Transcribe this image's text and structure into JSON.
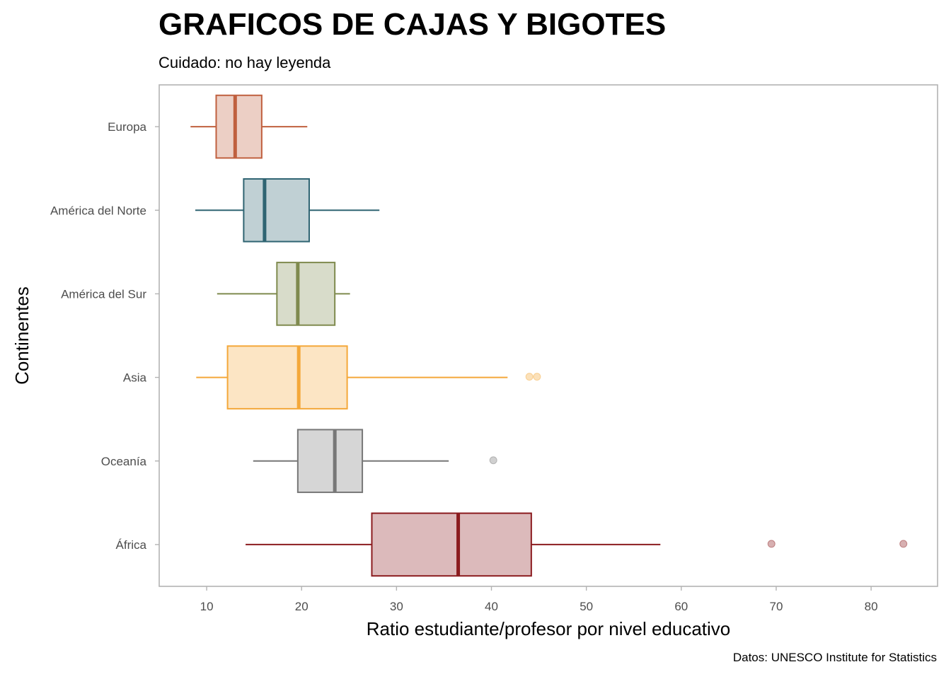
{
  "header": {
    "title": "GRAFICOS DE CAJAS Y BIGOTES",
    "subtitle": "Cuidado: no hay leyenda"
  },
  "caption": "Datos: UNESCO Institute for Statistics",
  "chart_data": {
    "type": "boxplot",
    "orientation": "horizontal",
    "title": "GRAFICOS DE CAJAS Y BIGOTES",
    "subtitle": "Cuidado: no hay leyenda",
    "xlabel": "Ratio estudiante/profesor por nivel educativo",
    "ylabel": "Continentes",
    "xlim": [
      5,
      87
    ],
    "x_ticks": [
      10,
      20,
      30,
      40,
      50,
      60,
      70,
      80
    ],
    "legend": "none",
    "grid": false,
    "categories": [
      "Europa",
      "América del Norte",
      "América del Sur",
      "Asia",
      "Oceanía",
      "África"
    ],
    "series": [
      {
        "category": "Europa",
        "color": "#c0603f",
        "whisker_low": 8.3,
        "q1": 11.0,
        "median": 13.0,
        "q3": 15.8,
        "whisker_high": 20.6,
        "outliers": []
      },
      {
        "category": "América del Norte",
        "color": "#2f6472",
        "whisker_low": 8.8,
        "q1": 13.9,
        "median": 16.1,
        "q3": 20.8,
        "whisker_high": 28.2,
        "outliers": []
      },
      {
        "category": "América del Sur",
        "color": "#7f8a4e",
        "whisker_low": 11.1,
        "q1": 17.4,
        "median": 19.6,
        "q3": 23.5,
        "whisker_high": 25.1,
        "outliers": []
      },
      {
        "category": "Asia",
        "color": "#f4a83a",
        "whisker_low": 8.9,
        "q1": 12.2,
        "median": 19.7,
        "q3": 24.8,
        "whisker_high": 41.7,
        "outliers": [
          44.0,
          44.8
        ]
      },
      {
        "category": "Oceanía",
        "color": "#777777",
        "whisker_low": 14.9,
        "q1": 19.6,
        "median": 23.5,
        "q3": 26.4,
        "whisker_high": 35.5,
        "outliers": [
          40.2
        ]
      },
      {
        "category": "África",
        "color": "#8b1c1f",
        "whisker_low": 14.1,
        "q1": 27.4,
        "median": 36.5,
        "q3": 44.2,
        "whisker_high": 57.8,
        "outliers": [
          69.5,
          83.4
        ]
      }
    ]
  }
}
